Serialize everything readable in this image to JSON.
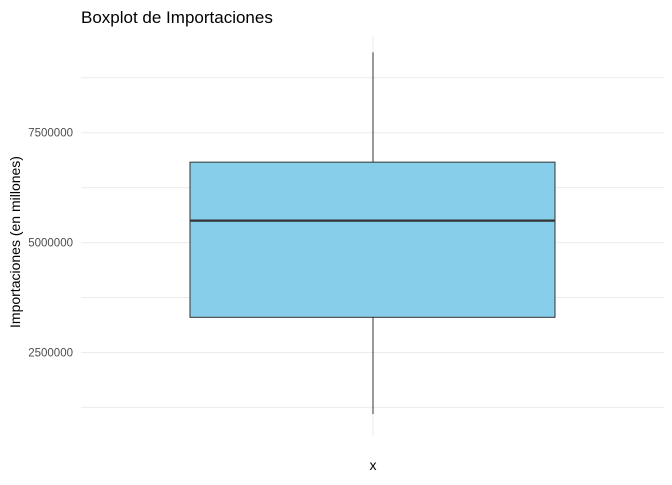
{
  "chart_data": {
    "type": "boxplot",
    "title": "Boxplot de Importaciones",
    "xlabel": "x",
    "ylabel": "Importaciones (en millones)",
    "ylim": [
      600000,
      9700000
    ],
    "yticks": [
      2500000,
      5000000,
      7500000
    ],
    "ytick_labels": [
      "2500000",
      "5000000",
      "7500000"
    ],
    "grid": true,
    "box": {
      "min": 1100000,
      "q1": 3300000,
      "median": 5500000,
      "q3": 6830000,
      "max": 9330000
    },
    "fill_color": "#87CEEB",
    "line_color": "#333333"
  }
}
